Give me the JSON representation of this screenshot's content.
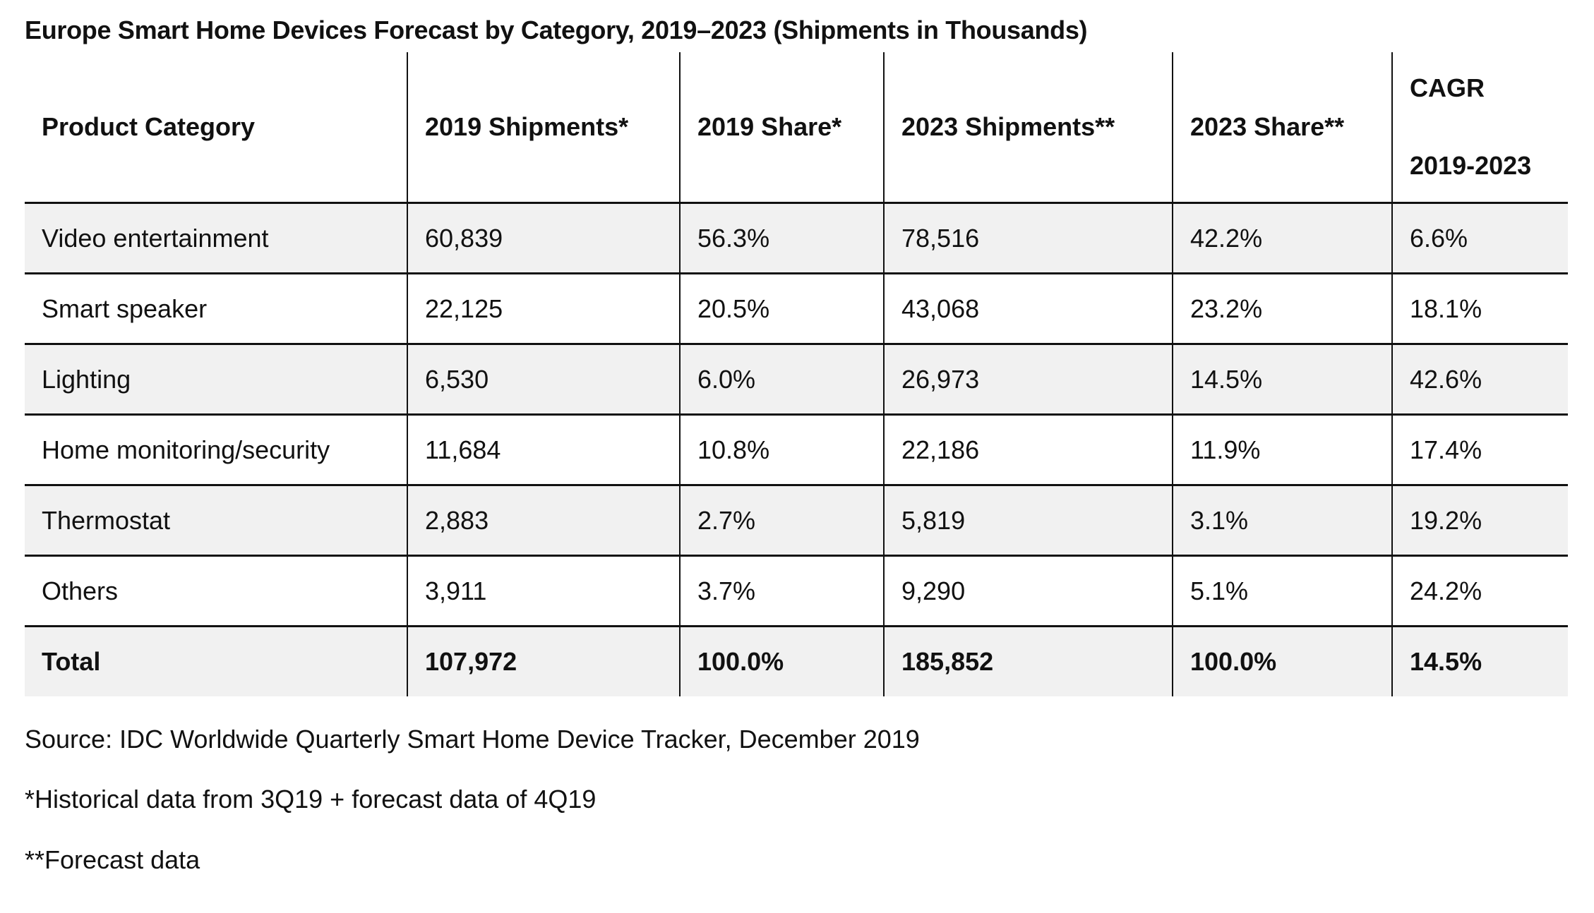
{
  "title": "Europe Smart Home Devices Forecast by Category, 2019–2023 (Shipments in Thousands)",
  "table": {
    "headers": {
      "category": "Product Category",
      "shipments_2019": "2019 Shipments*",
      "share_2019": "2019 Share*",
      "shipments_2023": "2023 Shipments**",
      "share_2023": "2023 Share**",
      "cagr_line1": "CAGR",
      "cagr_line2": "2019-2023"
    },
    "rows": [
      {
        "category": "Video entertainment",
        "shipments_2019": "60,839",
        "share_2019": "56.3%",
        "shipments_2023": "78,516",
        "share_2023": "42.2%",
        "cagr": "6.6%"
      },
      {
        "category": "Smart speaker",
        "shipments_2019": "22,125",
        "share_2019": "20.5%",
        "shipments_2023": "43,068",
        "share_2023": "23.2%",
        "cagr": "18.1%"
      },
      {
        "category": "Lighting",
        "shipments_2019": "6,530",
        "share_2019": "6.0%",
        "shipments_2023": "26,973",
        "share_2023": "14.5%",
        "cagr": "42.6%"
      },
      {
        "category": "Home monitoring/security",
        "shipments_2019": "11,684",
        "share_2019": "10.8%",
        "shipments_2023": "22,186",
        "share_2023": "11.9%",
        "cagr": "17.4%"
      },
      {
        "category": "Thermostat",
        "shipments_2019": "2,883",
        "share_2019": "2.7%",
        "shipments_2023": "5,819",
        "share_2023": "3.1%",
        "cagr": "19.2%"
      },
      {
        "category": "Others",
        "shipments_2019": "3,911",
        "share_2019": "3.7%",
        "shipments_2023": "9,290",
        "share_2023": "5.1%",
        "cagr": "24.2%"
      }
    ],
    "total": {
      "category": "Total",
      "shipments_2019": "107,972",
      "share_2019": "100.0%",
      "shipments_2023": "185,852",
      "share_2023": "100.0%",
      "cagr": "14.5%"
    }
  },
  "notes": {
    "source": "Source: IDC Worldwide Quarterly Smart Home Device Tracker, December 2019",
    "footnote1": "*Historical data from 3Q19 + forecast data of 4Q19",
    "footnote2": "**Forecast data"
  }
}
